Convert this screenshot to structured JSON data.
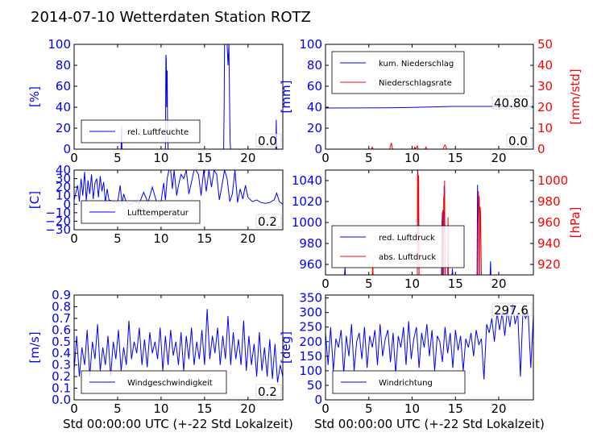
{
  "title": "2014-07-10 Wetterdaten Station ROTZ",
  "colors": {
    "primary": "#0000ff",
    "secondary": "#ff0000",
    "axis": "#000000"
  },
  "chart_data": [
    {
      "id": "humidity",
      "type": "line",
      "xlim": [
        0,
        24
      ],
      "xticks": [
        "0",
        "5",
        "10",
        "15",
        "20"
      ],
      "ylim": [
        0,
        100
      ],
      "yticks": [
        "0",
        "20",
        "40",
        "60",
        "80",
        "100"
      ],
      "ylabel": "[%]",
      "legend": {
        "position": "lower-left",
        "entries": [
          {
            "label": "rel. Luftfeuchte",
            "color": "#0000ff"
          }
        ]
      },
      "value_box": "0.0",
      "series": [
        {
          "name": "rel. Luftfeuchte",
          "color": "#0000ff",
          "x": [
            0,
            5.4,
            5.45,
            5.5,
            10.5,
            10.55,
            10.6,
            10.65,
            10.7,
            10.75,
            10.8,
            10.85,
            10.9,
            11,
            17.2,
            17.25,
            17.3,
            17.35,
            17.45,
            17.6,
            17.7,
            17.8,
            17.9,
            17.95,
            18,
            23.2,
            23.25,
            23.3,
            24
          ],
          "y": [
            0,
            0,
            22,
            0,
            0,
            90,
            85,
            40,
            75,
            20,
            0,
            0,
            0,
            0,
            0,
            40,
            100,
            100,
            100,
            100,
            80,
            100,
            30,
            5,
            0,
            0,
            28,
            0,
            0
          ]
        }
      ]
    },
    {
      "id": "precipitation",
      "type": "line",
      "xlim": [
        0,
        24
      ],
      "xticks": [
        "0",
        "5",
        "10",
        "15",
        "20"
      ],
      "ylim": [
        0,
        100
      ],
      "yticks": [
        "0",
        "20",
        "40",
        "60",
        "80",
        "100"
      ],
      "ylabel": "[mm]",
      "y2lim": [
        0,
        50
      ],
      "y2ticks": [
        "0",
        "10",
        "20",
        "30",
        "40",
        "50"
      ],
      "y2label": "[mm/std]",
      "legend": {
        "position": "upper-left",
        "entries": [
          {
            "label": "kum. Niederschlag",
            "color": "#0000ff"
          },
          {
            "label": "Niederschlagsrate",
            "color": "#ff0000"
          }
        ]
      },
      "value_box": "40.80",
      "value_box2": "0.0",
      "series": [
        {
          "name": "kum. Niederschlag",
          "color": "#0000ff",
          "axis": "left",
          "x": [
            0,
            7,
            10,
            13.8,
            14.5,
            24
          ],
          "y": [
            39.2,
            39.4,
            39.8,
            40.6,
            40.8,
            40.8
          ]
        },
        {
          "name": "Niederschlagsrate",
          "color": "#ff0000",
          "axis": "right",
          "x": [
            0,
            5.3,
            5.4,
            5.5,
            7.4,
            7.5,
            7.6,
            7.7,
            7.8,
            10.2,
            10.3,
            10.4,
            10.6,
            10.7,
            11.5,
            11.6,
            11.7,
            13.6,
            13.7,
            13.8,
            13.9,
            14,
            24
          ],
          "y": [
            0,
            0,
            1,
            0,
            0,
            1.5,
            3,
            0.5,
            0,
            0,
            1,
            0,
            1.5,
            0,
            0,
            1,
            0,
            0,
            1.5,
            2,
            1.2,
            0,
            0
          ]
        }
      ]
    },
    {
      "id": "temperature",
      "type": "line",
      "xlim": [
        0,
        24
      ],
      "xticks": [
        "0",
        "5",
        "10",
        "15",
        "20"
      ],
      "ylim": [
        -30,
        40
      ],
      "yticks": [
        "−30",
        "−20",
        "−10",
        "0",
        "10",
        "20",
        "30",
        "40"
      ],
      "ylabel": "[C]",
      "legend": {
        "position": "lower-left",
        "entries": [
          {
            "label": "Lufttemperatur",
            "color": "#0000ff"
          }
        ]
      },
      "value_box": "0.2",
      "series": [
        {
          "name": "Lufttemperatur",
          "color": "#0000ff",
          "x": [
            0,
            0.4,
            0.6,
            0.8,
            1,
            1.2,
            1.4,
            1.6,
            1.8,
            2,
            2.2,
            2.4,
            2.6,
            2.8,
            3,
            3.2,
            3.4,
            3.6,
            3.8,
            4,
            4.5,
            5,
            5.3,
            5.5,
            5.7,
            6,
            6.5,
            7,
            7.5,
            8,
            8.5,
            9,
            9.5,
            10,
            10.3,
            10.5,
            10.7,
            10.9,
            11.1,
            11.3,
            11.5,
            11.8,
            12,
            12.3,
            12.6,
            12.9,
            13.2,
            13.5,
            13.8,
            14,
            14.3,
            14.6,
            14.9,
            15.2,
            15.5,
            15.8,
            16.1,
            16.4,
            16.7,
            17,
            17.3,
            17.6,
            17.9,
            18.2,
            18.5,
            18.8,
            19.1,
            19.4,
            19.7,
            20,
            20.5,
            21,
            21.5,
            22,
            22.5,
            23,
            23.3,
            23.6,
            24
          ],
          "y": [
            5,
            22,
            3,
            30,
            10,
            38,
            4,
            28,
            12,
            35,
            6,
            25,
            30,
            8,
            33,
            15,
            26,
            2,
            18,
            5,
            3,
            2,
            22,
            0,
            12,
            2,
            0,
            3,
            1,
            14,
            2,
            20,
            2,
            3,
            25,
            5,
            30,
            40,
            40,
            18,
            40,
            10,
            22,
            35,
            30,
            40,
            12,
            26,
            40,
            40,
            35,
            10,
            40,
            15,
            40,
            20,
            40,
            35,
            5,
            22,
            40,
            30,
            3,
            12,
            40,
            2,
            18,
            6,
            22,
            8,
            3,
            5,
            2,
            1,
            2,
            5,
            13,
            3,
            0
          ]
        }
      ]
    },
    {
      "id": "pressure",
      "type": "line",
      "xlim": [
        0,
        24
      ],
      "xticks": [
        "0",
        "5",
        "10",
        "15",
        "20"
      ],
      "ylim": [
        950,
        1050
      ],
      "yticks": [
        "960",
        "980",
        "1000",
        "1020",
        "1040"
      ],
      "ylabel": "",
      "y2lim": [
        910,
        1010
      ],
      "y2ticks": [
        "920",
        "940",
        "960",
        "980",
        "1000"
      ],
      "y2label": "[hPa]",
      "legend": {
        "position": "lower-left",
        "entries": [
          {
            "label": "red. Luftdruck",
            "color": "#0000ff"
          },
          {
            "label": "abs. Luftdruck",
            "color": "#ff0000"
          }
        ]
      },
      "series": [
        {
          "name": "red. Luftdruck",
          "color": "#0000ff",
          "axis": "left",
          "x": [
            0,
            2.2,
            2.25,
            2.3,
            10.6,
            10.65,
            10.7,
            10.75,
            10.8,
            13.4,
            13.45,
            13.5,
            13.55,
            13.6,
            13.7,
            13.75,
            13.8,
            14.6,
            14.65,
            14.7,
            17.5,
            17.55,
            17.6,
            17.7,
            17.75,
            17.8,
            19,
            19.05,
            19.1,
            24
          ],
          "y": [
            950,
            950,
            958,
            950,
            950,
            1050,
            1040,
            1000,
            950,
            950,
            1000,
            1010,
            955,
            950,
            1035,
            1030,
            950,
            950,
            956,
            950,
            950,
            1036,
            1000,
            1025,
            1020,
            950,
            950,
            963,
            950,
            950
          ]
        },
        {
          "name": "abs. Luftdruck",
          "color": "#ff0000",
          "axis": "right",
          "x": [
            0,
            5.4,
            5.45,
            5.5,
            10.6,
            10.62,
            10.65,
            10.7,
            10.75,
            10.8,
            13.5,
            13.52,
            13.55,
            13.6,
            13.65,
            13.7,
            13.75,
            13.8,
            14.1,
            14.15,
            14.2,
            17.6,
            17.65,
            17.7,
            17.75,
            17.8,
            17.85,
            17.9,
            18,
            24
          ],
          "y": [
            910,
            910,
            923,
            910,
            910,
            1010,
            1000,
            960,
            1005,
            910,
            910,
            965,
            972,
            910,
            985,
            970,
            1000,
            910,
            910,
            965,
            910,
            910,
            990,
            980,
            985,
            910,
            975,
            970,
            910,
            910
          ]
        }
      ]
    },
    {
      "id": "wind_speed",
      "type": "line",
      "xlim": [
        0,
        24
      ],
      "xticks": [
        "0",
        "5",
        "10",
        "15",
        "20"
      ],
      "ylim": [
        0,
        0.9
      ],
      "yticks": [
        "0.0",
        "0.1",
        "0.2",
        "0.3",
        "0.4",
        "0.5",
        "0.6",
        "0.7",
        "0.8",
        "0.9"
      ],
      "ylabel": "[m/s]",
      "legend": {
        "position": "lower-left",
        "entries": [
          {
            "label": "Windgeschwindigkeit",
            "color": "#0000ff"
          }
        ]
      },
      "value_box": "0.2",
      "series": [
        {
          "name": "Windgeschwindigkeit",
          "color": "#0000ff",
          "x": [
            0,
            0.3,
            0.6,
            0.9,
            1.2,
            1.5,
            1.8,
            2.1,
            2.4,
            2.7,
            3,
            3.3,
            3.6,
            3.9,
            4.2,
            4.5,
            4.8,
            5.1,
            5.4,
            5.7,
            6,
            6.3,
            6.6,
            6.9,
            7.2,
            7.5,
            7.8,
            8.1,
            8.4,
            8.7,
            9,
            9.3,
            9.6,
            9.9,
            10.2,
            10.5,
            10.8,
            11.1,
            11.4,
            11.7,
            12,
            12.3,
            12.6,
            12.9,
            13.2,
            13.5,
            13.8,
            14.1,
            14.4,
            14.7,
            15,
            15.3,
            15.6,
            15.9,
            16.2,
            16.5,
            16.8,
            17.1,
            17.4,
            17.7,
            18,
            18.3,
            18.6,
            18.9,
            19.2,
            19.5,
            19.8,
            20.1,
            20.4,
            20.7,
            21,
            21.3,
            21.6,
            21.9,
            22.2,
            22.5,
            22.8,
            23.1,
            23.4,
            23.7,
            24
          ],
          "y": [
            0.25,
            0.55,
            0.2,
            0.45,
            0.3,
            0.6,
            0.2,
            0.5,
            0.35,
            0.65,
            0.25,
            0.45,
            0.3,
            0.55,
            0.2,
            0.5,
            0.35,
            0.6,
            0.25,
            0.45,
            0.3,
            0.68,
            0.35,
            0.5,
            0.4,
            0.62,
            0.3,
            0.52,
            0.28,
            0.58,
            0.4,
            0.5,
            0.35,
            0.62,
            0.25,
            0.55,
            0.3,
            0.6,
            0.38,
            0.5,
            0.3,
            0.58,
            0.25,
            0.55,
            0.35,
            0.62,
            0.3,
            0.5,
            0.35,
            0.6,
            0.3,
            0.78,
            0.35,
            0.55,
            0.4,
            0.62,
            0.3,
            0.55,
            0.35,
            0.72,
            0.3,
            0.58,
            0.35,
            0.52,
            0.3,
            0.68,
            0.25,
            0.55,
            0.3,
            0.48,
            0.2,
            0.58,
            0.25,
            0.45,
            0.2,
            0.52,
            0.18,
            0.48,
            0.15,
            0.3,
            0.2
          ]
        }
      ]
    },
    {
      "id": "wind_direction",
      "type": "line",
      "xlim": [
        0,
        24
      ],
      "xticks": [
        "0",
        "5",
        "10",
        "15",
        "20"
      ],
      "ylim": [
        0,
        360
      ],
      "yticks": [
        "0",
        "50",
        "100",
        "150",
        "200",
        "250",
        "300",
        "350"
      ],
      "ylabel": "[deg]",
      "legend": {
        "position": "lower-left",
        "entries": [
          {
            "label": "Windrichtung",
            "color": "#0000ff"
          }
        ]
      },
      "value_box": "297.6",
      "series": [
        {
          "name": "Windrichtung",
          "color": "#0000ff",
          "x": [
            0,
            0.3,
            0.6,
            0.9,
            1.2,
            1.5,
            1.8,
            2.1,
            2.4,
            2.7,
            3,
            3.3,
            3.6,
            3.9,
            4.2,
            4.5,
            4.8,
            5.1,
            5.4,
            5.7,
            6,
            6.3,
            6.6,
            6.9,
            7.2,
            7.5,
            7.8,
            8.1,
            8.4,
            8.7,
            9,
            9.3,
            9.6,
            9.9,
            10.2,
            10.5,
            10.8,
            11.1,
            11.4,
            11.7,
            12,
            12.3,
            12.6,
            12.9,
            13.2,
            13.5,
            13.8,
            14.1,
            14.4,
            14.7,
            15,
            15.3,
            15.6,
            15.9,
            16.2,
            16.5,
            16.8,
            17.1,
            17.4,
            17.7,
            18,
            18.3,
            18.6,
            18.9,
            19.2,
            19.5,
            19.8,
            20.1,
            20.4,
            20.7,
            21,
            21.3,
            21.6,
            21.9,
            22.2,
            22.5,
            22.8,
            23.1,
            23.4,
            23.7,
            24
          ],
          "y": [
            230,
            120,
            250,
            100,
            210,
            180,
            240,
            90,
            220,
            150,
            260,
            100,
            200,
            230,
            140,
            250,
            110,
            220,
            180,
            240,
            120,
            260,
            150,
            210,
            240,
            130,
            230,
            90,
            220,
            180,
            250,
            120,
            270,
            140,
            210,
            250,
            110,
            230,
            180,
            260,
            150,
            240,
            100,
            220,
            200,
            130,
            250,
            160,
            230,
            110,
            240,
            170,
            220,
            100,
            210,
            180,
            230,
            150,
            240,
            190,
            210,
            70,
            260,
            230,
            280,
            200,
            300,
            240,
            300,
            220,
            310,
            250,
            330,
            260,
            300,
            80,
            310,
            280,
            300,
            110,
            290
          ]
        }
      ]
    }
  ],
  "xlabel": "Std 00:00:00 UTC (+-22 Std Lokalzeit)"
}
